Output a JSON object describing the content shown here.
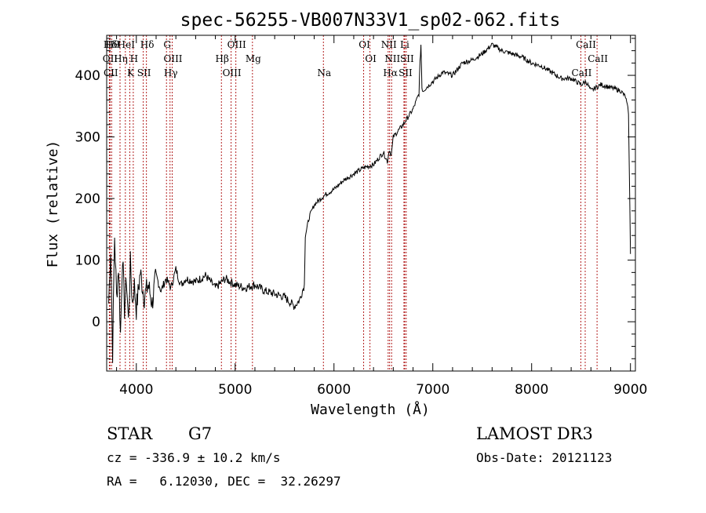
{
  "chart_data": {
    "type": "line",
    "title": "spec-56255-VB007N33V1_sp02-062.fits",
    "xlabel": "Wavelength (Å)",
    "ylabel": "Flux (relative)",
    "xlim": [
      3700,
      9050
    ],
    "ylim": [
      -80,
      465
    ],
    "xticks": [
      4000,
      5000,
      6000,
      7000,
      8000,
      9000
    ],
    "yticks": [
      0,
      100,
      200,
      300,
      400
    ],
    "spectral_lines": [
      {
        "label": "Hδ",
        "wavelength": 3730
      },
      {
        "label": "OII",
        "wavelength": 3727
      },
      {
        "label": "CII",
        "wavelength": 3734
      },
      {
        "label": "Hθ",
        "wavelength": 3750
      },
      {
        "label": "Hη",
        "wavelength": 3835
      },
      {
        "label": "K",
        "wavelength": 3934
      },
      {
        "label": "HeI",
        "wavelength": 3889
      },
      {
        "label": "H",
        "wavelength": 3969
      },
      {
        "label": "SII",
        "wavelength": 4070
      },
      {
        "label": "Hδ",
        "wavelength": 4102
      },
      {
        "label": "OIII",
        "wavelength": 4363
      },
      {
        "label": "Hγ",
        "wavelength": 4341
      },
      {
        "label": "G",
        "wavelength": 4305
      },
      {
        "label": "Hβ",
        "wavelength": 4861
      },
      {
        "label": "OIII",
        "wavelength": 4959
      },
      {
        "label": "OIII",
        "wavelength": 5007
      },
      {
        "label": "Mg",
        "wavelength": 5175
      },
      {
        "label": "Na",
        "wavelength": 5893
      },
      {
        "label": "OI",
        "wavelength": 6300
      },
      {
        "label": "OI",
        "wavelength": 6364
      },
      {
        "label": "Hα",
        "wavelength": 6563
      },
      {
        "label": "NII",
        "wavelength": 6548
      },
      {
        "label": "NII",
        "wavelength": 6583
      },
      {
        "label": "SII",
        "wavelength": 6716
      },
      {
        "label": "Li",
        "wavelength": 6708
      },
      {
        "label": "SII",
        "wavelength": 6731
      },
      {
        "label": "CaII",
        "wavelength": 8498
      },
      {
        "label": "CaII",
        "wavelength": 8542
      },
      {
        "label": "CaII",
        "wavelength": 8662
      }
    ],
    "series": [
      {
        "name": "flux",
        "x": [
          3720,
          3740,
          3760,
          3780,
          3800,
          3820,
          3840,
          3860,
          3880,
          3900,
          3920,
          3940,
          3960,
          3980,
          4000,
          4040,
          4080,
          4120,
          4160,
          4200,
          4250,
          4300,
          4350,
          4400,
          4450,
          4500,
          4600,
          4700,
          4800,
          4900,
          5000,
          5100,
          5200,
          5300,
          5400,
          5500,
          5600,
          5650,
          5700,
          5710,
          5750,
          5800,
          5900,
          6000,
          6100,
          6200,
          6300,
          6400,
          6500,
          6540,
          6560,
          6580,
          6600,
          6700,
          6800,
          6860,
          6870,
          6880,
          6890,
          6900,
          7000,
          7100,
          7200,
          7300,
          7400,
          7500,
          7600,
          7700,
          7800,
          7900,
          8000,
          8100,
          8200,
          8300,
          8400,
          8500,
          8550,
          8600,
          8700,
          8800,
          8900,
          8950,
          8980,
          9000
        ],
        "y": [
          30,
          120,
          -50,
          140,
          40,
          90,
          -20,
          110,
          20,
          70,
          0,
          95,
          30,
          60,
          20,
          80,
          40,
          60,
          30,
          75,
          50,
          70,
          55,
          85,
          60,
          70,
          65,
          75,
          55,
          70,
          60,
          55,
          60,
          50,
          45,
          40,
          25,
          35,
          60,
          140,
          170,
          190,
          205,
          215,
          230,
          240,
          250,
          255,
          275,
          260,
          280,
          270,
          300,
          320,
          345,
          370,
          420,
          450,
          380,
          375,
          390,
          405,
          400,
          420,
          425,
          435,
          450,
          440,
          435,
          430,
          420,
          415,
          405,
          395,
          395,
          385,
          390,
          375,
          385,
          380,
          375,
          365,
          340,
          110
        ]
      }
    ],
    "info": {
      "object_class": "STAR",
      "subclass": "G7",
      "survey": "LAMOST DR3",
      "cz": "cz = -336.9 ± 10.2 km/s",
      "obs_date": "Obs-Date: 20121123",
      "coords": "RA =   6.12030, DEC =  32.26297"
    }
  }
}
